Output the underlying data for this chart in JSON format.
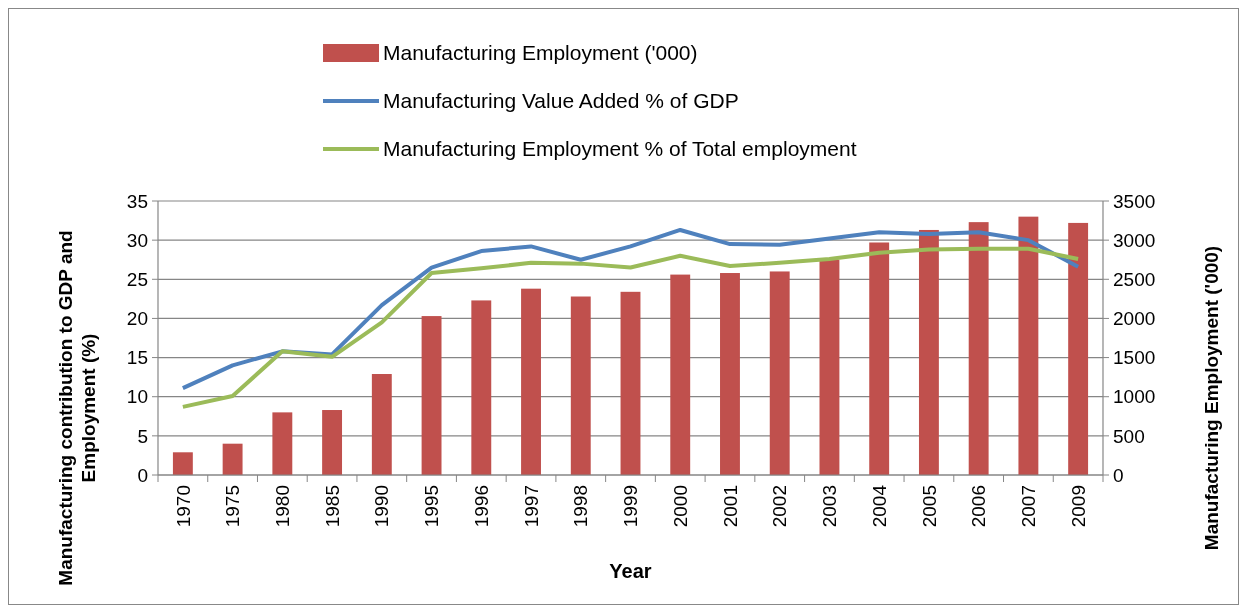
{
  "chart_data": {
    "type": "bar",
    "categories": [
      "1970",
      "1975",
      "1980",
      "1985",
      "1990",
      "1995",
      "1996",
      "1997",
      "1998",
      "1999",
      "2000",
      "2001",
      "2002",
      "2003",
      "2004",
      "2005",
      "2006",
      "2007",
      "2009"
    ],
    "series": [
      {
        "name": "Manufacturing Employment ('000)",
        "axis": "y2",
        "color": "#c0504d",
        "values": [
          290,
          400,
          800,
          830,
          1290,
          2030,
          2230,
          2380,
          2280,
          2340,
          2560,
          2580,
          2600,
          2750,
          2970,
          3130,
          3230,
          3300,
          3220
        ]
      },
      {
        "name": "Manufacturing Value Added % of GDP",
        "type": "line",
        "color": "#4f81bd",
        "values": [
          11.1,
          14,
          15.8,
          15.4,
          21.7,
          26.5,
          28.6,
          29.2,
          27.5,
          29.2,
          31.3,
          29.5,
          29.4,
          30.2,
          31,
          30.8,
          31,
          30,
          26.6
        ]
      },
      {
        "name": "Manufacturing Employment % of Total employment",
        "type": "line",
        "color": "#9bbb59",
        "values": [
          8.7,
          10.1,
          15.8,
          15.1,
          19.5,
          25.8,
          26.4,
          27.1,
          27,
          26.5,
          28,
          26.7,
          27.1,
          27.6,
          28.4,
          28.8,
          28.9,
          28.9,
          27.6
        ]
      }
    ],
    "xlabel": "Year",
    "ylabel": "Manufacturing contribution to GDP and Employment (%)",
    "y2label": "Manufacturing Employment ('000)",
    "ylim": [
      0,
      35
    ],
    "yticks": [
      0,
      5,
      10,
      15,
      20,
      25,
      30,
      35
    ],
    "y2lim": [
      0,
      3500
    ],
    "y2ticks": [
      0,
      500,
      1000,
      1500,
      2000,
      2500,
      3000,
      3500
    ],
    "grid": "y",
    "legend": "top",
    "marker": "none",
    "line_style": "solid"
  }
}
